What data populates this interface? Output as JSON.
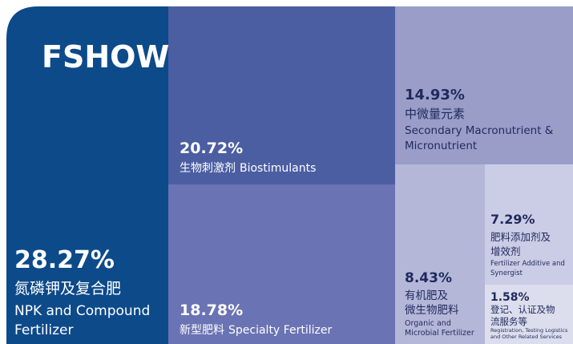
{
  "chart_data": {
    "type": "treemap",
    "title": "FSHOW",
    "values": [
      28.27,
      20.72,
      18.78,
      14.93,
      8.43,
      7.29,
      1.58
    ],
    "value_labels": [
      "28.27%",
      "20.72%",
      "18.78%",
      "14.93%",
      "8.43%",
      "7.29%",
      "1.58%"
    ],
    "labels_cn": [
      [
        "氮磷钾及复合肥"
      ],
      [
        "生物刺激剂"
      ],
      [
        "新型肥料"
      ],
      [
        "中微量元素"
      ],
      [
        "有机肥及",
        "微生物肥料"
      ],
      [
        "肥料添加剂及",
        "增效剂"
      ],
      [
        "登记、认证及物",
        "流服务等"
      ]
    ],
    "labels_en": [
      [
        "NPK and Compound",
        "Fertilizer"
      ],
      [
        "Biostimulants"
      ],
      [
        "Specialty Fertilizer"
      ],
      [
        "Secondary Macronutrient &",
        "Micronutrient"
      ],
      [
        "Organic and",
        "Microbial Fertilizer"
      ],
      [
        "Fertilizer Additive and",
        "Synergist"
      ],
      [
        "Registration, Testing Logistics",
        "and Other Related Services"
      ]
    ],
    "colors": [
      "#0d4a8a",
      "#4b5ea2",
      "#6a73b3",
      "#9a9dc8",
      "#b5b7d9",
      "#cbcce5",
      "#dcdded"
    ]
  }
}
